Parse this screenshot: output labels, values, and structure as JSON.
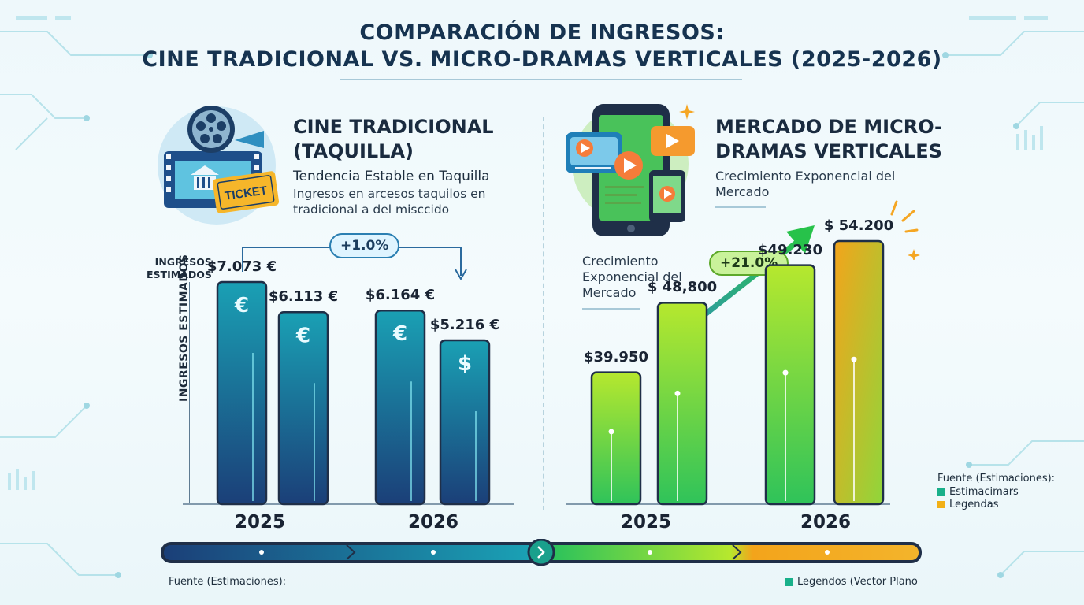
{
  "title_line1": "COMPARACIÓN DE INGRESOS:",
  "title_line2": "CINE TRADICIONAL VS. MICRO-DRAMAS VERTICALES (2025-2026)",
  "left": {
    "heading_line1": "CINE TRADICIONAL",
    "heading_line2": "(TAQUILLA)",
    "subtitle": "Tendencia Estable en Taquilla",
    "desc_line1": "Ingresos en arcesos taquilos en",
    "desc_line2": "tradicional a del misccido",
    "ticket_label": "TICKET",
    "axis_label_top_line1": "INGRESOS",
    "axis_label_top_line2": "ESTIMADOS",
    "axis_label_vertical": "INGRESOS ESTIMADOS",
    "badge": "+1.0%"
  },
  "right": {
    "heading_line1": "MERCADO DE MICRO-",
    "heading_line2": "DRAMAS VERTICALES",
    "subtitle_line1": "Crecimiento Exponencial del",
    "subtitle_line2": "Mercado",
    "note_line1": "Crecimiento",
    "note_line2": "Exponencial del",
    "note_line3": "Mercado",
    "badge": "+21.0%"
  },
  "legend": {
    "title": "Fuente (Estimaciones):",
    "items": [
      {
        "label": "Estimacimars",
        "color": "#19b08a"
      },
      {
        "label": "Legendas",
        "color": "#f2b015"
      }
    ]
  },
  "footer": {
    "left": "Fuente (Estimaciones):",
    "right": "Legendos (Vector Plano",
    "right_color": "#19b08a"
  },
  "colors": {
    "cinema_dark": "#1b3f78",
    "cinema_light": "#1aa0b4",
    "micro_green": "#47c94a",
    "micro_lime": "#b6e82e",
    "micro_orange": "#f3a41b"
  },
  "chart_data": [
    {
      "type": "bar",
      "title": "CINE TRADICIONAL (TAQUILLA)",
      "ylabel": "INGRESOS ESTIMADOS",
      "categories": [
        "2025",
        "2026"
      ],
      "series_values": [
        7073,
        6113,
        6164,
        5216
      ],
      "bars": [
        {
          "year": "2025",
          "value": 7073,
          "label": "$7.073 €",
          "icon": "€"
        },
        {
          "year": "2025",
          "value": 6113,
          "label": "$6.113 €",
          "icon": "€"
        },
        {
          "year": "2026",
          "value": 6164,
          "label": "$6.164 €",
          "icon": "€"
        },
        {
          "year": "2026",
          "value": 5216,
          "label": "$5.216 €",
          "icon": "$"
        }
      ],
      "ylim": [
        0,
        7600
      ],
      "annotation": "+1.0%"
    },
    {
      "type": "bar",
      "title": "MERCADO DE MICRO-DRAMAS VERTICALES",
      "categories": [
        "2025",
        "2026"
      ],
      "bars": [
        {
          "year": "2025",
          "value": 39950,
          "label": "$39.950"
        },
        {
          "year": "2025",
          "value": 48800,
          "label": "$ 48,800"
        },
        {
          "year": "2026",
          "value": 49230,
          "label": "$49.230"
        },
        {
          "year": "2026",
          "value": 54200,
          "label": "$ 54.200"
        }
      ],
      "ylim": [
        0,
        58000
      ],
      "annotation": "+21.0%"
    }
  ]
}
